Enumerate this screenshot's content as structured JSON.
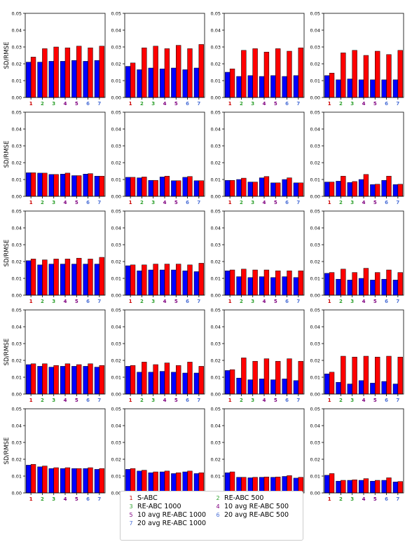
{
  "colors": {
    "bar_blue": "#0000ff",
    "bar_red": "#ff0000",
    "tick_colors": [
      "#cc0000",
      "#2ca02c",
      "#2ca02c",
      "#800080",
      "#800080",
      "#4a6fd6",
      "#4a6fd6"
    ]
  },
  "chart_data": {
    "type": "bar",
    "layout": "grid of 5 rows x 4 columns",
    "ylabel": "SD/RMSE",
    "categories": [
      "1",
      "2",
      "3",
      "4",
      "5",
      "6",
      "7"
    ],
    "ylim": [
      0,
      0.05
    ],
    "yticks": [
      "0.00",
      "0.01",
      "0.02",
      "0.03",
      "0.04",
      "0.05"
    ],
    "grid": false,
    "series_colors": [
      "blue",
      "red"
    ],
    "panels": [
      {
        "row": 1,
        "col": 1,
        "blue": [
          0.021,
          0.021,
          0.0215,
          0.0215,
          0.022,
          0.0215,
          0.022
        ],
        "red": [
          0.024,
          0.029,
          0.03,
          0.0295,
          0.0305,
          0.0295,
          0.0305
        ]
      },
      {
        "row": 1,
        "col": 2,
        "blue": [
          0.0185,
          0.0165,
          0.0175,
          0.017,
          0.0175,
          0.0165,
          0.0175
        ],
        "red": [
          0.0205,
          0.0295,
          0.0305,
          0.029,
          0.031,
          0.029,
          0.0315
        ]
      },
      {
        "row": 1,
        "col": 3,
        "blue": [
          0.015,
          0.0125,
          0.013,
          0.0125,
          0.013,
          0.0125,
          0.013
        ],
        "red": [
          0.017,
          0.028,
          0.029,
          0.027,
          0.029,
          0.0275,
          0.0295
        ]
      },
      {
        "row": 1,
        "col": 4,
        "blue": [
          0.013,
          0.0105,
          0.011,
          0.0105,
          0.0105,
          0.0105,
          0.0105
        ],
        "red": [
          0.0145,
          0.0265,
          0.028,
          0.025,
          0.0275,
          0.0255,
          0.028
        ]
      },
      {
        "row": 2,
        "col": 1,
        "blue": [
          0.014,
          0.0138,
          0.013,
          0.0132,
          0.0123,
          0.0132,
          0.012
        ],
        "red": [
          0.014,
          0.0138,
          0.013,
          0.0138,
          0.0123,
          0.0135,
          0.012
        ]
      },
      {
        "row": 2,
        "col": 2,
        "blue": [
          0.0113,
          0.011,
          0.0095,
          0.0115,
          0.0093,
          0.0113,
          0.0093
        ],
        "red": [
          0.0113,
          0.0115,
          0.0095,
          0.012,
          0.0093,
          0.0118,
          0.0093
        ]
      },
      {
        "row": 2,
        "col": 3,
        "blue": [
          0.0095,
          0.01,
          0.0085,
          0.011,
          0.008,
          0.01,
          0.008
        ],
        "red": [
          0.0095,
          0.0108,
          0.0085,
          0.0118,
          0.008,
          0.011,
          0.008
        ]
      },
      {
        "row": 2,
        "col": 4,
        "blue": [
          0.0085,
          0.009,
          0.0082,
          0.01,
          0.007,
          0.0095,
          0.007
        ],
        "red": [
          0.0085,
          0.012,
          0.0088,
          0.013,
          0.0072,
          0.012,
          0.0072
        ]
      },
      {
        "row": 3,
        "col": 1,
        "blue": [
          0.0205,
          0.018,
          0.0185,
          0.0185,
          0.0185,
          0.0185,
          0.0185
        ],
        "red": [
          0.0215,
          0.021,
          0.0215,
          0.0215,
          0.022,
          0.0215,
          0.0225
        ]
      },
      {
        "row": 3,
        "col": 2,
        "blue": [
          0.0175,
          0.0145,
          0.015,
          0.015,
          0.015,
          0.0145,
          0.014
        ],
        "red": [
          0.018,
          0.018,
          0.0185,
          0.0185,
          0.0185,
          0.018,
          0.019
        ]
      },
      {
        "row": 3,
        "col": 3,
        "blue": [
          0.0145,
          0.011,
          0.0105,
          0.011,
          0.0105,
          0.011,
          0.0105
        ],
        "red": [
          0.015,
          0.0155,
          0.015,
          0.015,
          0.0145,
          0.0145,
          0.0145
        ]
      },
      {
        "row": 3,
        "col": 4,
        "blue": [
          0.013,
          0.0095,
          0.009,
          0.01,
          0.009,
          0.0095,
          0.009
        ],
        "red": [
          0.0135,
          0.0155,
          0.0135,
          0.016,
          0.0135,
          0.015,
          0.0135
        ]
      },
      {
        "row": 4,
        "col": 1,
        "blue": [
          0.0175,
          0.0165,
          0.016,
          0.0165,
          0.0165,
          0.0165,
          0.016
        ],
        "red": [
          0.018,
          0.018,
          0.017,
          0.018,
          0.0175,
          0.018,
          0.017
        ]
      },
      {
        "row": 4,
        "col": 2,
        "blue": [
          0.0165,
          0.013,
          0.013,
          0.0135,
          0.013,
          0.0125,
          0.0125
        ],
        "red": [
          0.017,
          0.019,
          0.0175,
          0.0185,
          0.017,
          0.019,
          0.0165
        ]
      },
      {
        "row": 4,
        "col": 3,
        "blue": [
          0.014,
          0.0095,
          0.0085,
          0.009,
          0.0085,
          0.009,
          0.008
        ],
        "red": [
          0.0145,
          0.0215,
          0.0195,
          0.021,
          0.0195,
          0.021,
          0.0195
        ]
      },
      {
        "row": 4,
        "col": 4,
        "blue": [
          0.012,
          0.007,
          0.006,
          0.008,
          0.0065,
          0.0075,
          0.006
        ],
        "red": [
          0.013,
          0.0225,
          0.022,
          0.0225,
          0.022,
          0.0225,
          0.022
        ]
      },
      {
        "row": 5,
        "col": 1,
        "blue": [
          0.0165,
          0.0155,
          0.0145,
          0.0145,
          0.0145,
          0.0145,
          0.014
        ],
        "red": [
          0.017,
          0.016,
          0.015,
          0.015,
          0.0145,
          0.015,
          0.0145
        ]
      },
      {
        "row": 5,
        "col": 2,
        "blue": [
          0.014,
          0.013,
          0.012,
          0.0125,
          0.0115,
          0.0125,
          0.0115
        ],
        "red": [
          0.0145,
          0.0135,
          0.0125,
          0.013,
          0.012,
          0.013,
          0.012
        ]
      },
      {
        "row": 5,
        "col": 3,
        "blue": [
          0.012,
          0.0093,
          0.009,
          0.0093,
          0.0093,
          0.0098,
          0.0088
        ],
        "red": [
          0.0125,
          0.0093,
          0.0093,
          0.0095,
          0.0095,
          0.0103,
          0.0093
        ]
      },
      {
        "row": 5,
        "col": 4,
        "blue": [
          0.0105,
          0.007,
          0.0075,
          0.0075,
          0.007,
          0.0075,
          0.0065
        ],
        "red": [
          0.0115,
          0.0075,
          0.0078,
          0.0085,
          0.0075,
          0.009,
          0.0068
        ]
      }
    ],
    "legend": {
      "position": "bottom-center",
      "entries": [
        {
          "num": "1",
          "label": "S-ABC"
        },
        {
          "num": "2",
          "label": "RE-ABC 500"
        },
        {
          "num": "3",
          "label": "RE-ABC 1000"
        },
        {
          "num": "4",
          "label": "10 avg RE-ABC 500"
        },
        {
          "num": "5",
          "label": "10 avg RE-ABC 1000"
        },
        {
          "num": "6",
          "label": "20 avg RE-ABC 500"
        },
        {
          "num": "7",
          "label": "20 avg RE-ABC 1000"
        }
      ]
    }
  }
}
